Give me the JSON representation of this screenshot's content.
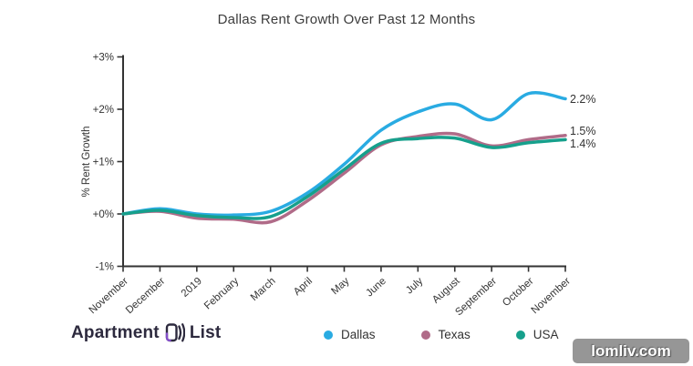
{
  "title": "Dallas Rent Growth Over Past 12 Months",
  "chart_data": {
    "type": "line",
    "x": [
      "November",
      "December",
      "2019",
      "February",
      "March",
      "April",
      "May",
      "June",
      "July",
      "August",
      "September",
      "October",
      "November"
    ],
    "series": [
      {
        "name": "Dallas",
        "color": "#29abe2",
        "end_label": "2.2%",
        "values": [
          0.0,
          0.1,
          0.0,
          -0.02,
          0.05,
          0.4,
          0.95,
          1.6,
          1.95,
          2.1,
          1.8,
          2.3,
          2.2
        ]
      },
      {
        "name": "Texas",
        "color": "#b06b88",
        "end_label": "1.5%",
        "values": [
          0.0,
          0.05,
          -0.08,
          -0.1,
          -0.15,
          0.25,
          0.78,
          1.32,
          1.48,
          1.53,
          1.3,
          1.42,
          1.5
        ]
      },
      {
        "name": "USA",
        "color": "#16a08c",
        "end_label": "1.4%",
        "values": [
          0.0,
          0.07,
          -0.03,
          -0.07,
          -0.05,
          0.33,
          0.85,
          1.35,
          1.44,
          1.45,
          1.27,
          1.36,
          1.42
        ]
      }
    ],
    "ylabel": "% Rent Growth",
    "yticks": [
      {
        "value": 3,
        "label": "+3%"
      },
      {
        "value": 2,
        "label": "+2%"
      },
      {
        "value": 1,
        "label": "+1%"
      },
      {
        "value": 0,
        "label": "+0%"
      },
      {
        "value": -1,
        "label": "-1%"
      }
    ],
    "ylim": [
      -1,
      3
    ],
    "grid": false,
    "legend_position": "bottom",
    "axis_color": "#333333"
  },
  "branding": {
    "name_part1": "Apartment",
    "name_part2": "List"
  },
  "watermark": "lomliv.com"
}
